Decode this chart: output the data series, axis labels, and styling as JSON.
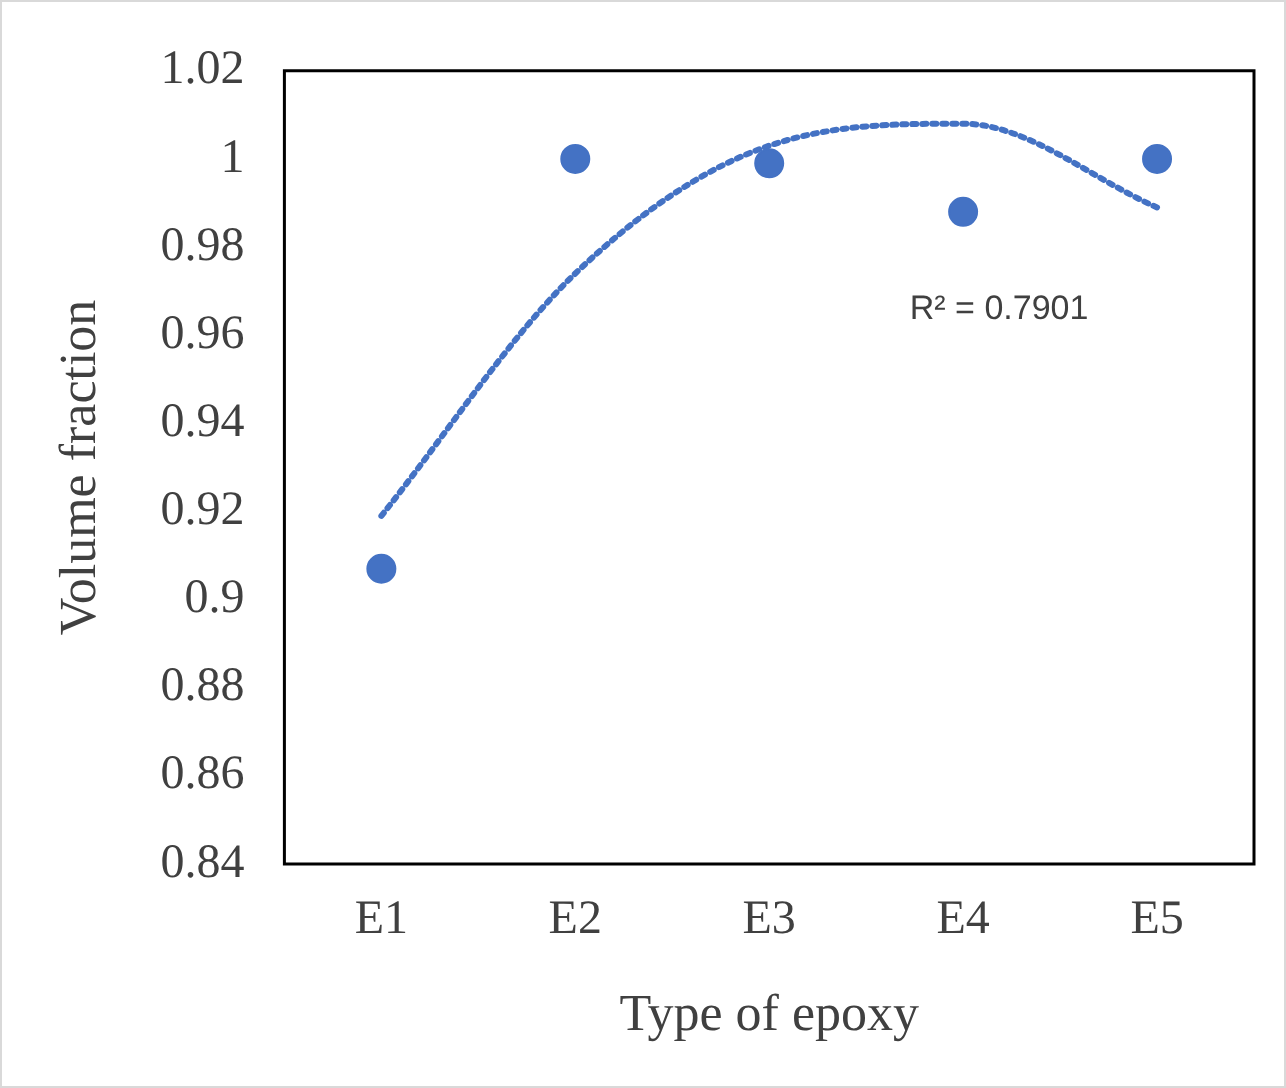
{
  "chart_data": {
    "type": "scatter",
    "xlabel": "Type of epoxy",
    "ylabel": "Volume fraction",
    "categories": [
      "E1",
      "E2",
      "E3",
      "E4",
      "E5"
    ],
    "series": [
      {
        "type": "scatter",
        "color": "#4472c4",
        "marker": "circle",
        "values": [
          0.907,
          1.0,
          0.999,
          0.988,
          1.0
        ]
      },
      {
        "type": "line",
        "color": "#4472c4",
        "marker": "none",
        "line_style": "dotted",
        "values": [
          0.919,
          0.974,
          1.003,
          1.008,
          0.989
        ]
      }
    ],
    "ylim": [
      0.84,
      1.02
    ],
    "yticks": [
      0.84,
      0.86,
      0.88,
      0.9,
      0.92,
      0.94,
      0.96,
      0.98,
      1,
      1.02
    ],
    "annotations": [
      "R² = 0.7901"
    ],
    "grid": false,
    "legend": false
  }
}
